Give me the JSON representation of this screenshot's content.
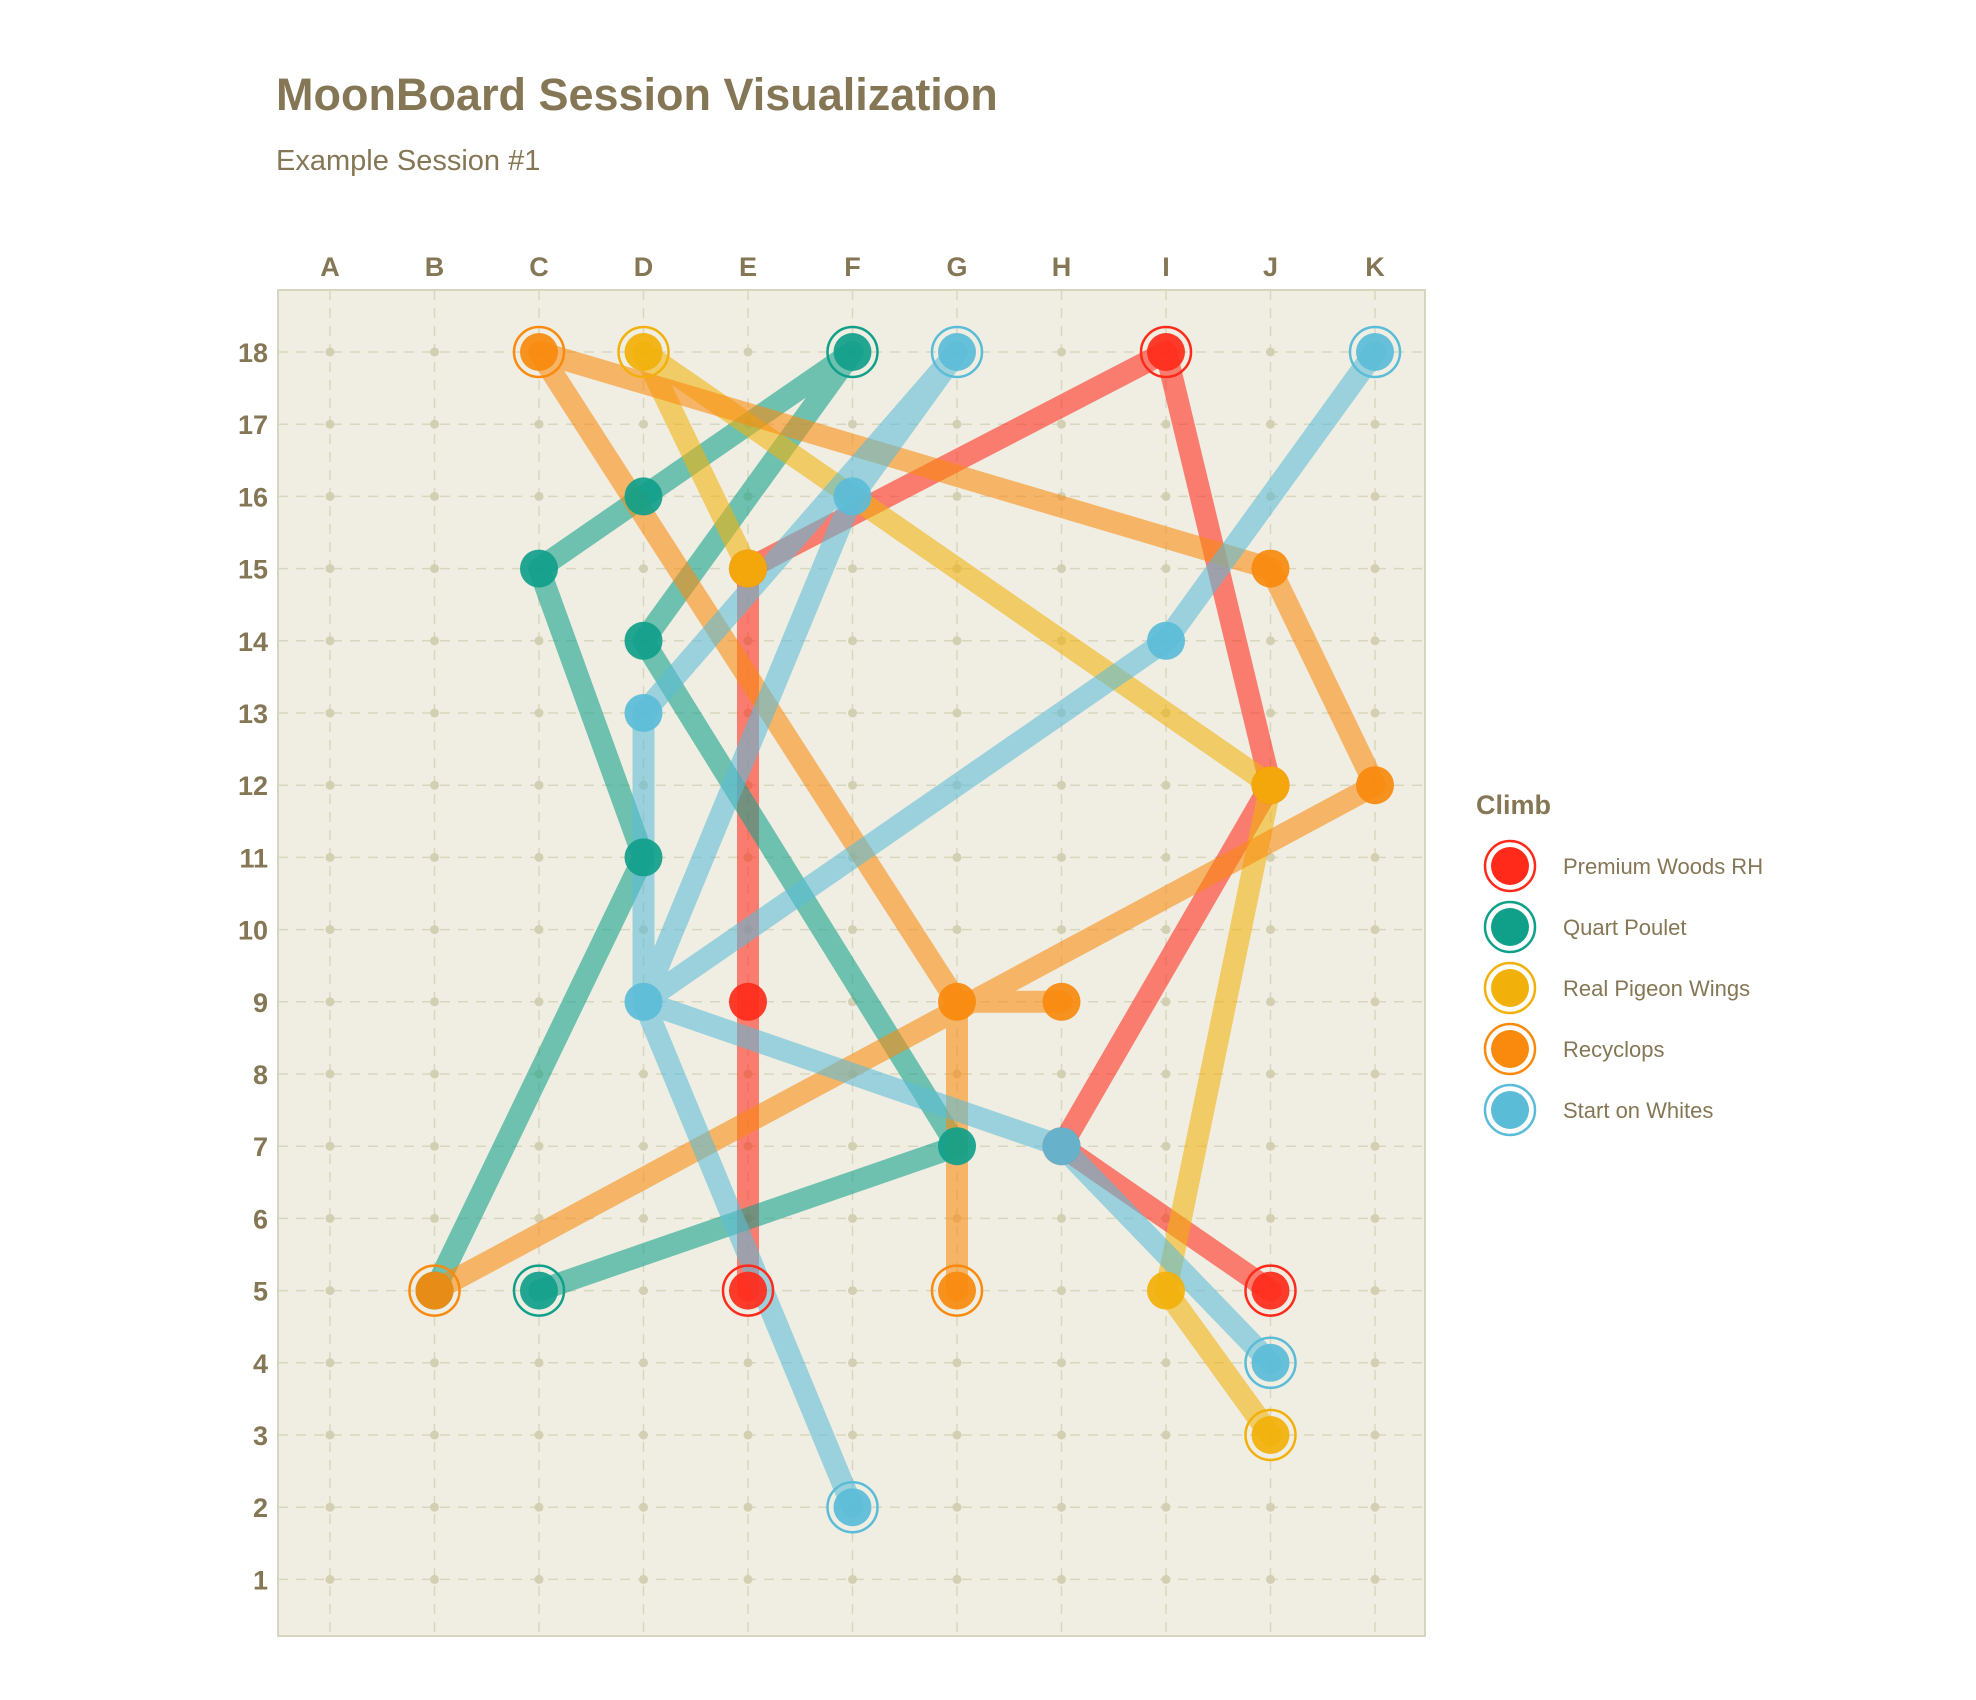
{
  "chart_data": {
    "type": "line",
    "title": "MoonBoard Session Visualization",
    "subtitle": "Example Session #1",
    "x_categories": [
      "A",
      "B",
      "C",
      "D",
      "E",
      "F",
      "G",
      "H",
      "I",
      "J",
      "K"
    ],
    "y_range": [
      1,
      18
    ],
    "grid": true,
    "legend": {
      "title": "Climb",
      "position": "right"
    },
    "series": [
      {
        "name": "Premium Woods RH",
        "color": "#ff2a1a",
        "start_holds": [
          [
            "E",
            5
          ],
          [
            "J",
            5
          ]
        ],
        "end_holds": [
          [
            "I",
            18
          ]
        ],
        "path": [
          [
            "E",
            5
          ],
          [
            "E",
            9
          ],
          [
            "E",
            15
          ],
          [
            "I",
            18
          ],
          [
            "J",
            12
          ],
          [
            "H",
            7
          ],
          [
            "J",
            5
          ]
        ]
      },
      {
        "name": "Quart Poulet",
        "color": "#10a08a",
        "start_holds": [
          [
            "C",
            5
          ]
        ],
        "end_holds": [
          [
            "F",
            18
          ]
        ],
        "path": [
          [
            "C",
            5
          ],
          [
            "G",
            7
          ],
          [
            "D",
            14
          ],
          [
            "F",
            18
          ],
          [
            "D",
            16
          ],
          [
            "C",
            15
          ],
          [
            "D",
            11
          ],
          [
            "B",
            5
          ]
        ]
      },
      {
        "name": "Real Pigeon Wings",
        "color": "#f2b10a",
        "start_holds": [
          [
            "J",
            3
          ]
        ],
        "end_holds": [
          [
            "D",
            18
          ]
        ],
        "path": [
          [
            "J",
            3
          ],
          [
            "I",
            5
          ],
          [
            "J",
            12
          ],
          [
            "D",
            18
          ],
          [
            "E",
            15
          ]
        ]
      },
      {
        "name": "Recyclops",
        "color": "#f98a0d",
        "start_holds": [
          [
            "G",
            5
          ],
          [
            "B",
            5
          ]
        ],
        "end_holds": [
          [
            "C",
            18
          ]
        ],
        "path": [
          [
            "G",
            5
          ],
          [
            "G",
            9
          ],
          [
            "H",
            9
          ],
          [
            "G",
            9
          ],
          [
            "C",
            18
          ],
          [
            "J",
            15
          ],
          [
            "K",
            12
          ],
          [
            "B",
            5
          ]
        ]
      },
      {
        "name": "Start on Whites",
        "color": "#5bbcd8",
        "start_holds": [
          [
            "F",
            2
          ],
          [
            "J",
            4
          ]
        ],
        "end_holds": [
          [
            "G",
            18
          ],
          [
            "K",
            18
          ]
        ],
        "path": [
          [
            "F",
            2
          ],
          [
            "D",
            9
          ],
          [
            "D",
            13
          ],
          [
            "G",
            18
          ],
          [
            "F",
            16
          ],
          [
            "D",
            9
          ],
          [
            "H",
            7
          ],
          [
            "J",
            4
          ],
          [
            "H",
            7
          ],
          [
            "D",
            9
          ],
          [
            "I",
            14
          ],
          [
            "K",
            18
          ]
        ]
      }
    ]
  }
}
